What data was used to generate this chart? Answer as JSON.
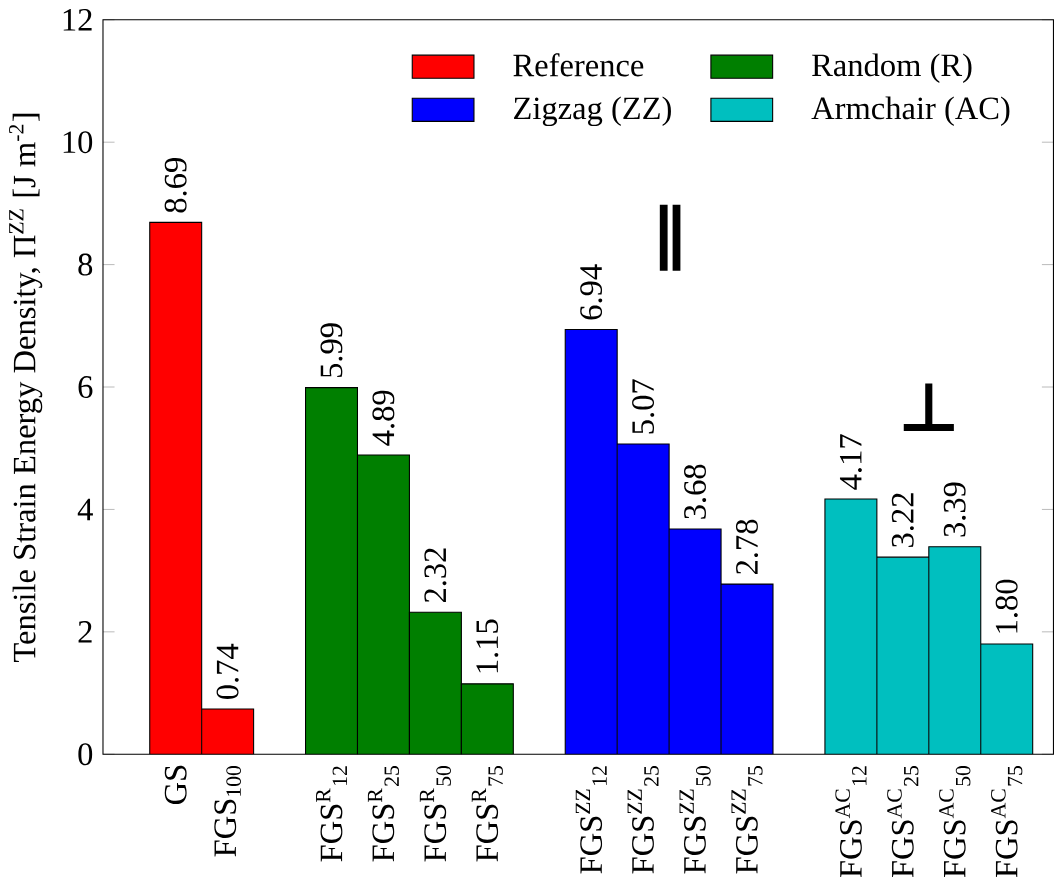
{
  "chart_data": {
    "type": "bar",
    "ylabel": "Tensile Strain Energy Density, Π$^{ZZ}$ [J m$^{-2}$]",
    "categories": [
      "GS",
      "FGS$_{100}$",
      null,
      "FGS$^{R}$$_{12}$",
      "FGS$^{R}$$_{25}$",
      "FGS$^{R}$$_{50}$",
      "FGS$^{R}$$_{75}$",
      null,
      "FGS$^{ZZ}$$_{12}$",
      "FGS$^{ZZ}$$_{25}$",
      "FGS$^{ZZ}$$_{50}$",
      "FGS$^{ZZ}$$_{75}$",
      null,
      "FGS$^{AC}$$_{12}$",
      "FGS$^{AC}$$_{25}$",
      "FGS$^{AC}$$_{50}$",
      "FGS$^{AC}$$_{75}$"
    ],
    "series": [
      {
        "name": "Reference",
        "color": "#ff0000",
        "values": [
          8.69,
          0.74,
          null,
          null,
          null,
          null,
          null,
          null,
          null,
          null,
          null,
          null,
          null,
          null,
          null,
          null,
          null
        ],
        "value_labels": [
          "8.69",
          "0.74",
          null,
          null,
          null,
          null,
          null,
          null,
          null,
          null,
          null,
          null,
          null,
          null,
          null,
          null,
          null
        ]
      },
      {
        "name": "Random (R)",
        "color": "#007f00",
        "values": [
          null,
          null,
          null,
          5.99,
          4.89,
          2.32,
          1.15,
          null,
          null,
          null,
          null,
          null,
          null,
          null,
          null,
          null,
          null
        ],
        "value_labels": [
          null,
          null,
          null,
          "5.99",
          "4.89",
          "2.32",
          "1.15",
          null,
          null,
          null,
          null,
          null,
          null,
          null,
          null,
          null,
          null
        ]
      },
      {
        "name": "Zigzag (ZZ)",
        "color": "#0000ff",
        "values": [
          null,
          null,
          null,
          null,
          null,
          null,
          null,
          null,
          6.94,
          5.07,
          3.68,
          2.78,
          null,
          null,
          null,
          null,
          null
        ],
        "value_labels": [
          null,
          null,
          null,
          null,
          null,
          null,
          null,
          null,
          "6.94",
          "5.07",
          "3.68",
          "2.78",
          null,
          null,
          null,
          null,
          null
        ]
      },
      {
        "name": "Armchair (AC)",
        "color": "#00bfbf",
        "values": [
          null,
          null,
          null,
          null,
          null,
          null,
          null,
          null,
          null,
          null,
          null,
          null,
          null,
          4.17,
          3.22,
          3.39,
          1.8
        ],
        "value_labels": [
          null,
          null,
          null,
          null,
          null,
          null,
          null,
          null,
          null,
          null,
          null,
          null,
          null,
          "4.17",
          "3.22",
          "3.39",
          "1.80"
        ]
      }
    ],
    "annotations": [
      "∥",
      "⊥"
    ],
    "ylim": [
      0,
      12
    ],
    "yticks": [
      0,
      2,
      4,
      6,
      8,
      10,
      12
    ],
    "legend": "top right",
    "grid": false
  }
}
